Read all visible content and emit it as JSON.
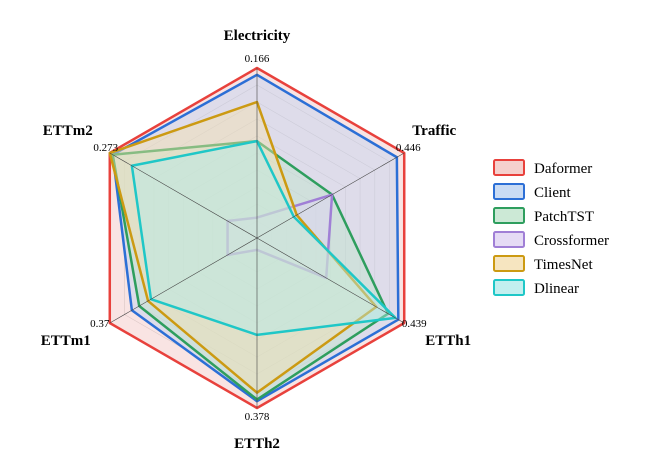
{
  "chart_data": {
    "type": "radar",
    "axes": [
      {
        "name": "Electricity",
        "max_label": "0.166"
      },
      {
        "name": "Traffic",
        "max_label": "0.446"
      },
      {
        "name": "ETTh1",
        "max_label": "0.439"
      },
      {
        "name": "ETTh2",
        "max_label": "0.378"
      },
      {
        "name": "ETTm1",
        "max_label": "0.37"
      },
      {
        "name": "ETTm2",
        "max_label": "0.273"
      }
    ],
    "scale": "normalized score per axis (1 = outer ring)",
    "grid_levels": 10,
    "legend_position": "right",
    "series": [
      {
        "name": "Daformer",
        "color": "#e8413c",
        "fill": "#f2c4c0",
        "values": [
          1.0,
          1.0,
          1.0,
          1.0,
          1.0,
          1.0
        ]
      },
      {
        "name": "Client",
        "color": "#2c6fd6",
        "fill": "#bcd2f1",
        "values": [
          0.96,
          0.95,
          0.96,
          0.96,
          0.85,
          0.98
        ]
      },
      {
        "name": "PatchTST",
        "color": "#2e9e5e",
        "fill": "#bfe4cc",
        "values": [
          0.57,
          0.51,
          0.89,
          0.95,
          0.8,
          0.98
        ]
      },
      {
        "name": "Crossformer",
        "color": "#a07fd6",
        "fill": "#dfd2f3",
        "values": [
          0.12,
          0.51,
          0.47,
          0.07,
          0.2,
          0.2
        ]
      },
      {
        "name": "TimesNet",
        "color": "#cc9a12",
        "fill": "#f4dfb0",
        "values": [
          0.8,
          0.27,
          0.81,
          0.91,
          0.74,
          1.0
        ]
      },
      {
        "name": "Dlinear",
        "color": "#1fc7c7",
        "fill": "#b4ebeb",
        "values": [
          0.57,
          0.25,
          0.94,
          0.57,
          0.72,
          0.85
        ]
      }
    ]
  }
}
